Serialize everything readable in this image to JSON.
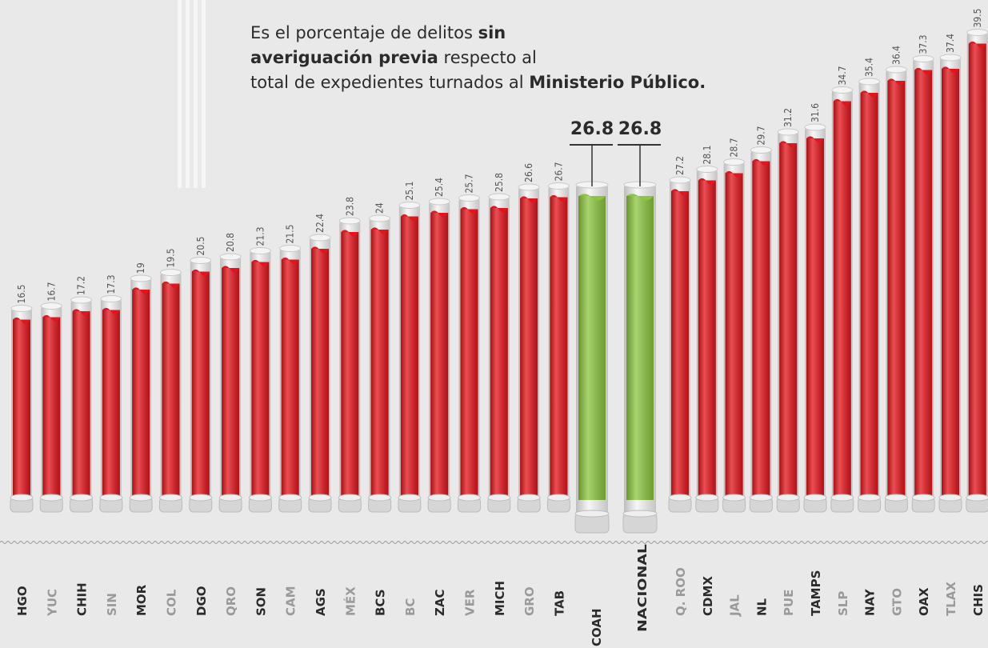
{
  "chart_data": {
    "type": "bar",
    "annotation": [
      {
        "text": "Es el porcentaje de delitos ",
        "bold": false
      },
      {
        "text": "sin averiguación previa",
        "bold": true
      },
      {
        "text": " respecto al total de expedientes turnados al ",
        "bold": false
      },
      {
        "text": "Ministerio Público.",
        "bold": true
      }
    ],
    "categories": [
      "HGO",
      "YUC",
      "CHIH",
      "SIN",
      "MOR",
      "COL",
      "DGO",
      "QRO",
      "SON",
      "CAM",
      "AGS",
      "MÉX",
      "BCS",
      "BC",
      "ZAC",
      "VER",
      "MICH",
      "GRO",
      "TAB",
      "COAH",
      "NACIONAL",
      "Q. ROO",
      "CDMX",
      "JAL",
      "NL",
      "PUE",
      "TAMPS",
      "SLP",
      "NAY",
      "GTO",
      "OAX",
      "TLAX",
      "CHIS"
    ],
    "values": [
      16.5,
      16.7,
      17.2,
      17.3,
      19,
      19.5,
      20.5,
      20.8,
      21.3,
      21.5,
      22.4,
      23.8,
      24,
      25.1,
      25.4,
      25.7,
      25.8,
      26.6,
      26.7,
      26.8,
      26.8,
      27.2,
      28.1,
      28.7,
      29.7,
      31.2,
      31.6,
      34.7,
      35.4,
      36.4,
      37.3,
      37.4,
      39.5
    ],
    "colors": [
      "#e3141b",
      "#e3141b",
      "#e3141b",
      "#e3141b",
      "#e3141b",
      "#e3141b",
      "#e3141b",
      "#e3141b",
      "#e3141b",
      "#e3141b",
      "#e3141b",
      "#e3141b",
      "#e3141b",
      "#e3141b",
      "#e3141b",
      "#e3141b",
      "#e3141b",
      "#e3141b",
      "#e3141b",
      "#8cc63f",
      "#8cc63f",
      "#e3141b",
      "#e3141b",
      "#e3141b",
      "#e3141b",
      "#e3141b",
      "#e3141b",
      "#e3141b",
      "#e3141b",
      "#e3141b",
      "#e3141b",
      "#e3141b",
      "#e3141b"
    ],
    "ylim": [
      0,
      43
    ]
  }
}
